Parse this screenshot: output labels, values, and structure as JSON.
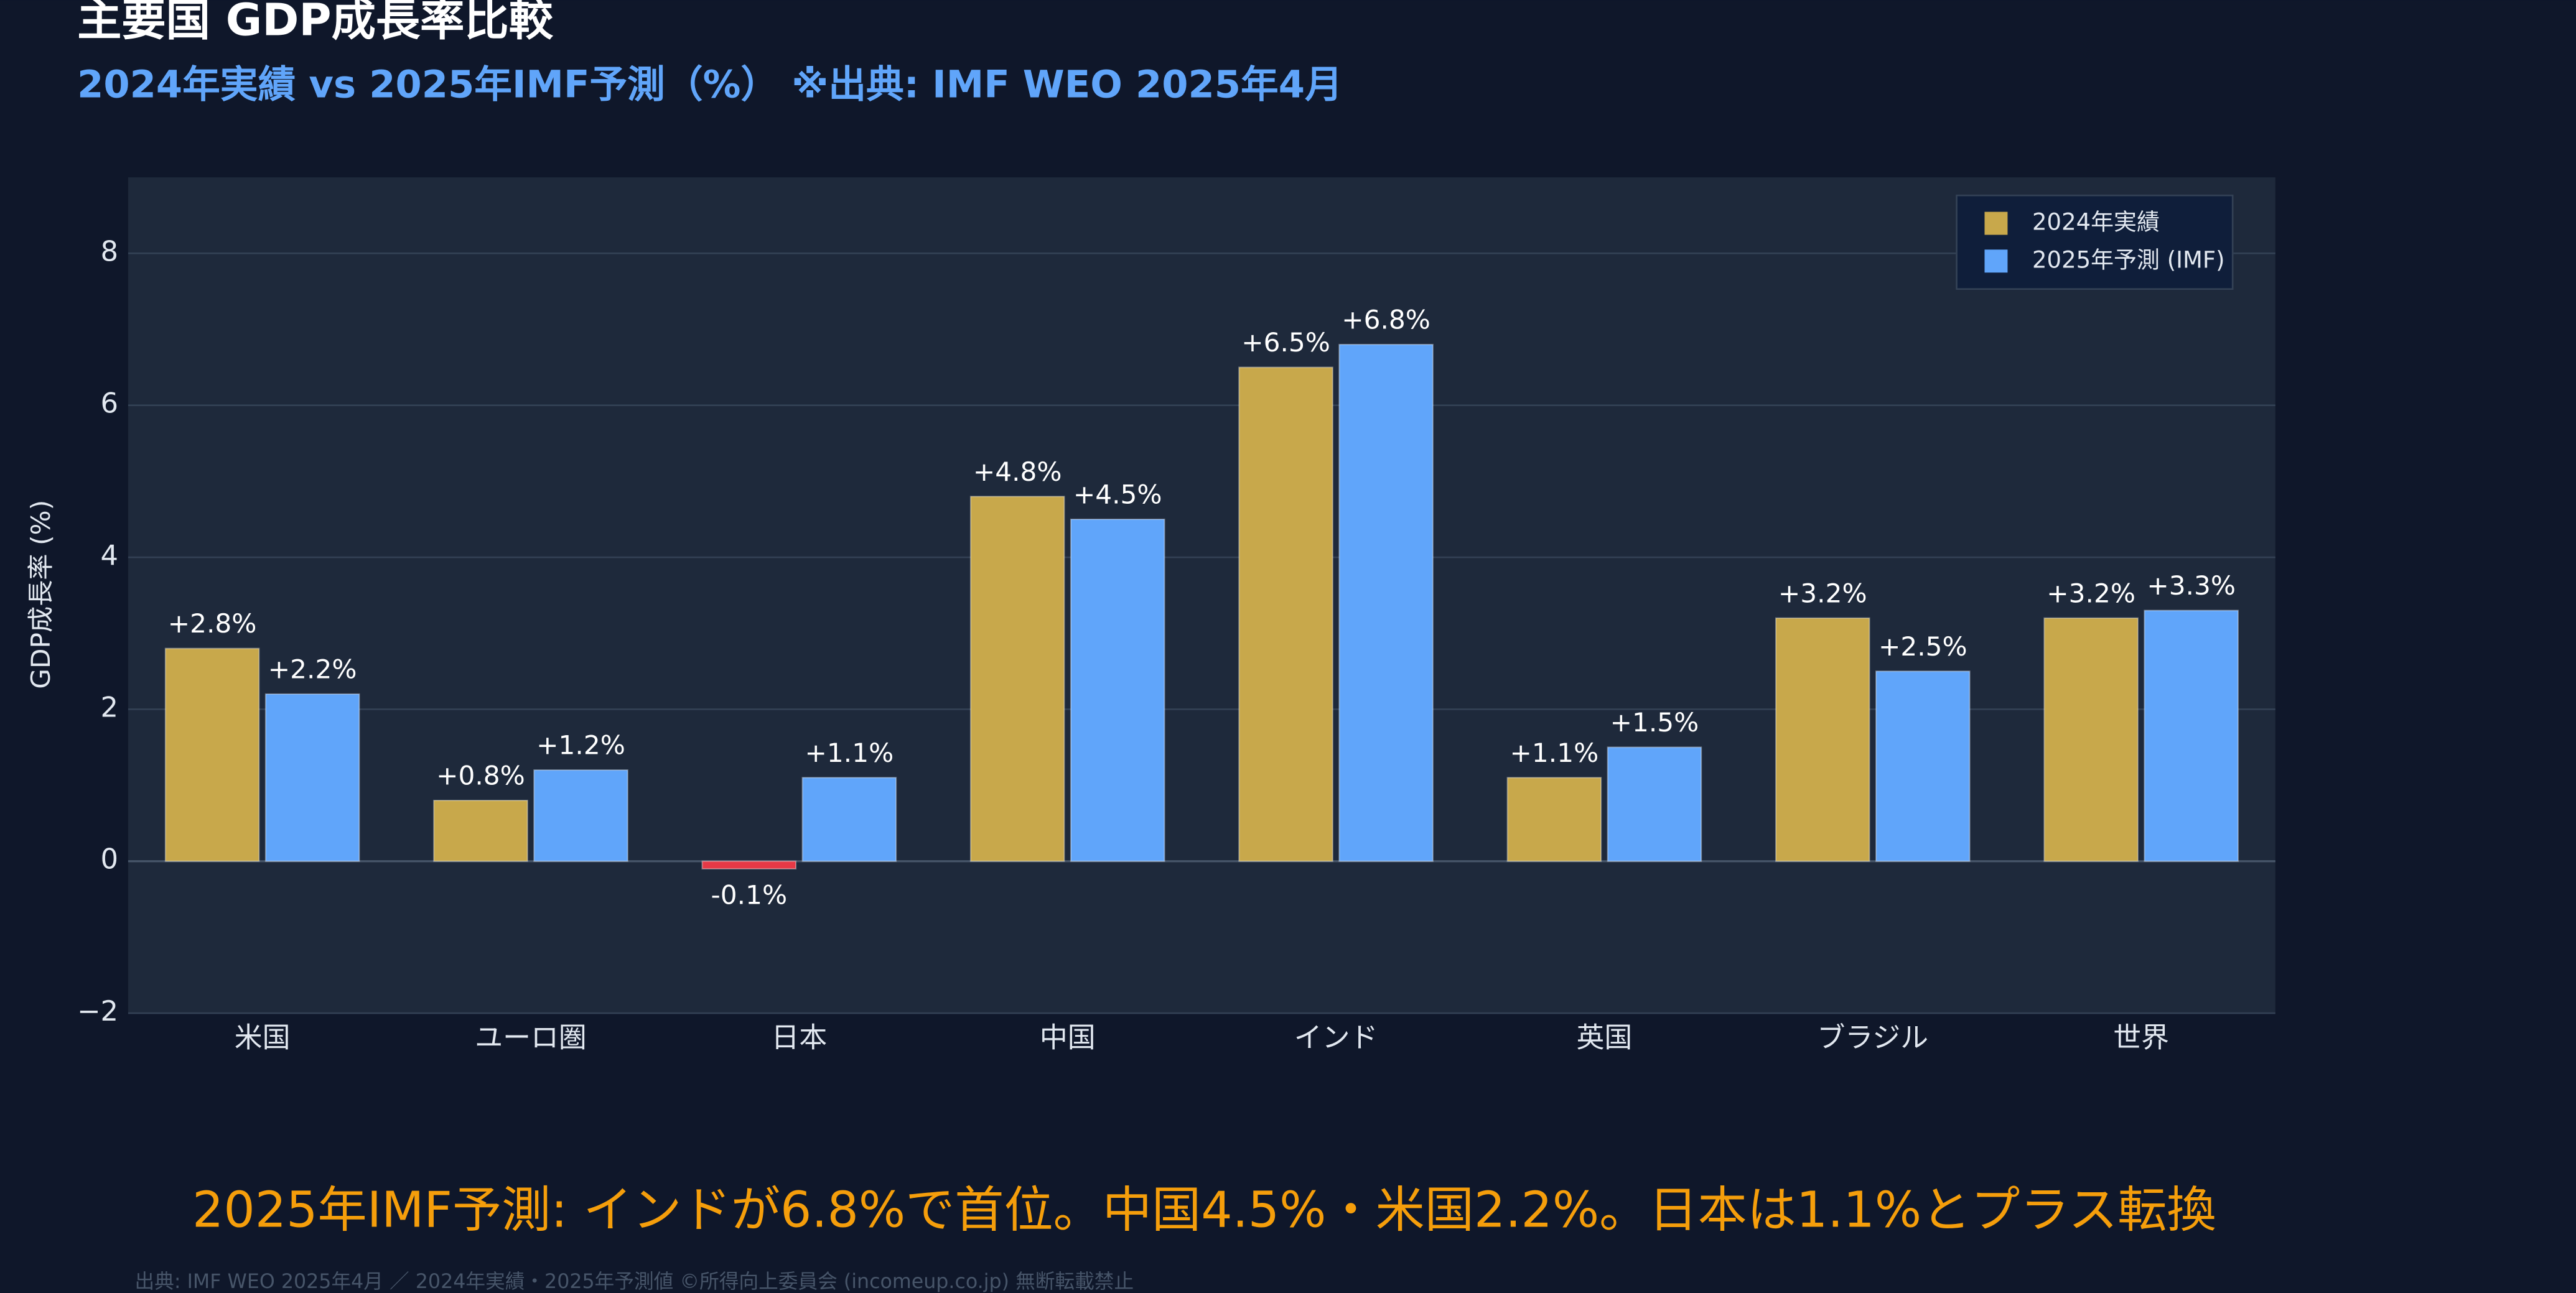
{
  "chart_data": {
    "type": "bar",
    "title": "主要国 GDP成長率比較",
    "subtitle": "2024年実績 vs 2025年IMF予測（%） ※出典: IMF WEO 2025年4月",
    "y_label": "GDP成長率 (%)",
    "annotation": "2025年IMF予測: インドが6.8%で首位。中国4.5%・米国2.2%。日本は1.1%とプラス転換",
    "footer": "出典: IMF WEO 2025年4月 ／ 2024年実績・2025年予測値 ©所得向上委員会 (incomeup.co.jp) 無断転載禁止",
    "categories": [
      "米国",
      "ユーロ圏",
      "日本",
      "中国",
      "インド",
      "英国",
      "ブラジル",
      "世界"
    ],
    "series": [
      {
        "name": "2024年実績",
        "color": "#c8a84b",
        "negative_color": "#e63946",
        "values": [
          2.8,
          0.8,
          -0.1,
          4.8,
          6.5,
          1.1,
          3.2,
          3.2
        ],
        "value_labels": [
          "+2.8%",
          "+0.8%",
          "-0.1%",
          "+4.8%",
          "+6.5%",
          "+1.1%",
          "+3.2%",
          "+3.2%"
        ]
      },
      {
        "name": "2025年予測 (IMF)",
        "color": "#60a5fa",
        "values": [
          2.2,
          1.2,
          1.1,
          4.5,
          6.8,
          1.5,
          2.5,
          3.3
        ],
        "value_labels": [
          "+2.2%",
          "+1.2%",
          "+1.1%",
          "+4.5%",
          "+6.8%",
          "+1.5%",
          "+2.5%",
          "+3.3%"
        ]
      }
    ],
    "ylim": [
      -2,
      9
    ],
    "yticks": [
      {
        "value": -2,
        "label": "−2"
      },
      0,
      2,
      4,
      6,
      8
    ],
    "grid": true,
    "legend": "top-right"
  }
}
